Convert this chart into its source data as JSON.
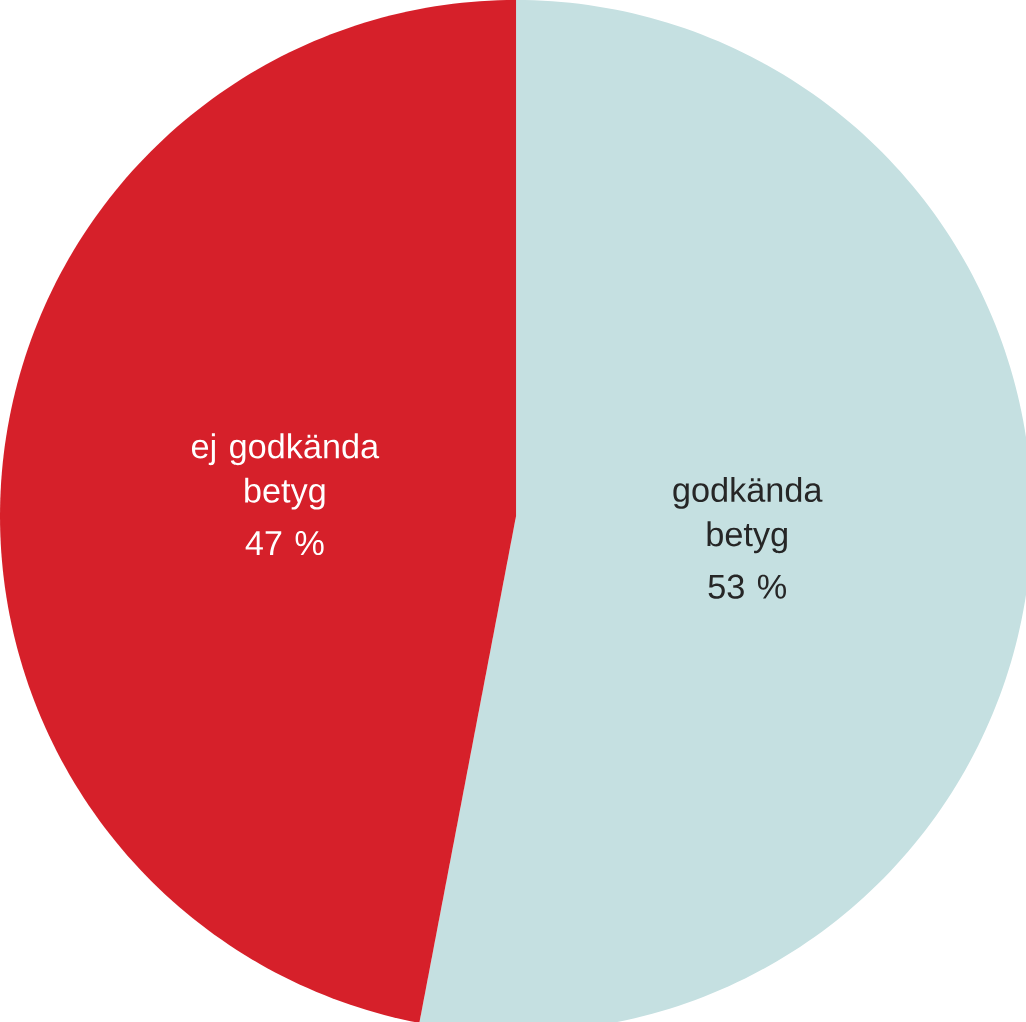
{
  "chart_data": {
    "type": "pie",
    "categories": [
      "godkända betyg",
      "ej godkända betyg"
    ],
    "values": [
      53,
      47
    ],
    "colors": [
      "#c5e0e1",
      "#d6202a"
    ],
    "value_labels": [
      "53 %",
      "47 %"
    ]
  }
}
